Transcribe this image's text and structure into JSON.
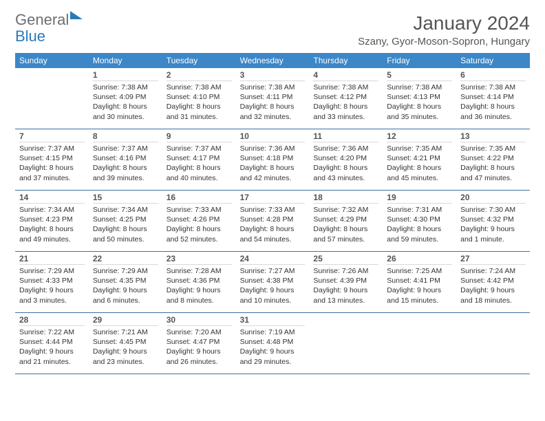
{
  "brand": {
    "line1": "General",
    "line2": "Blue"
  },
  "title": "January 2024",
  "location": "Szany, Gyor-Moson-Sopron, Hungary",
  "styling": {
    "header_bg": "#3b87c8",
    "header_text": "#ffffff",
    "accent_border": "#3b6fa0",
    "daynum_color": "#555555",
    "body_text": "#333333",
    "logo_gray": "#6d6e71",
    "logo_blue": "#2a7ab9",
    "page_bg": "#ffffff",
    "font_family": "Arial",
    "title_fontsize": 28,
    "location_fontsize": 15,
    "weekday_fontsize": 12,
    "daynum_fontsize": 12,
    "dayinfo_fontsize": 10.5,
    "columns": 7
  },
  "weekdays": [
    "Sunday",
    "Monday",
    "Tuesday",
    "Wednesday",
    "Thursday",
    "Friday",
    "Saturday"
  ],
  "weeks": [
    [
      null,
      {
        "n": "1",
        "sr": "Sunrise: 7:38 AM",
        "ss": "Sunset: 4:09 PM",
        "dl": "Daylight: 8 hours and 30 minutes."
      },
      {
        "n": "2",
        "sr": "Sunrise: 7:38 AM",
        "ss": "Sunset: 4:10 PM",
        "dl": "Daylight: 8 hours and 31 minutes."
      },
      {
        "n": "3",
        "sr": "Sunrise: 7:38 AM",
        "ss": "Sunset: 4:11 PM",
        "dl": "Daylight: 8 hours and 32 minutes."
      },
      {
        "n": "4",
        "sr": "Sunrise: 7:38 AM",
        "ss": "Sunset: 4:12 PM",
        "dl": "Daylight: 8 hours and 33 minutes."
      },
      {
        "n": "5",
        "sr": "Sunrise: 7:38 AM",
        "ss": "Sunset: 4:13 PM",
        "dl": "Daylight: 8 hours and 35 minutes."
      },
      {
        "n": "6",
        "sr": "Sunrise: 7:38 AM",
        "ss": "Sunset: 4:14 PM",
        "dl": "Daylight: 8 hours and 36 minutes."
      }
    ],
    [
      {
        "n": "7",
        "sr": "Sunrise: 7:37 AM",
        "ss": "Sunset: 4:15 PM",
        "dl": "Daylight: 8 hours and 37 minutes."
      },
      {
        "n": "8",
        "sr": "Sunrise: 7:37 AM",
        "ss": "Sunset: 4:16 PM",
        "dl": "Daylight: 8 hours and 39 minutes."
      },
      {
        "n": "9",
        "sr": "Sunrise: 7:37 AM",
        "ss": "Sunset: 4:17 PM",
        "dl": "Daylight: 8 hours and 40 minutes."
      },
      {
        "n": "10",
        "sr": "Sunrise: 7:36 AM",
        "ss": "Sunset: 4:18 PM",
        "dl": "Daylight: 8 hours and 42 minutes."
      },
      {
        "n": "11",
        "sr": "Sunrise: 7:36 AM",
        "ss": "Sunset: 4:20 PM",
        "dl": "Daylight: 8 hours and 43 minutes."
      },
      {
        "n": "12",
        "sr": "Sunrise: 7:35 AM",
        "ss": "Sunset: 4:21 PM",
        "dl": "Daylight: 8 hours and 45 minutes."
      },
      {
        "n": "13",
        "sr": "Sunrise: 7:35 AM",
        "ss": "Sunset: 4:22 PM",
        "dl": "Daylight: 8 hours and 47 minutes."
      }
    ],
    [
      {
        "n": "14",
        "sr": "Sunrise: 7:34 AM",
        "ss": "Sunset: 4:23 PM",
        "dl": "Daylight: 8 hours and 49 minutes."
      },
      {
        "n": "15",
        "sr": "Sunrise: 7:34 AM",
        "ss": "Sunset: 4:25 PM",
        "dl": "Daylight: 8 hours and 50 minutes."
      },
      {
        "n": "16",
        "sr": "Sunrise: 7:33 AM",
        "ss": "Sunset: 4:26 PM",
        "dl": "Daylight: 8 hours and 52 minutes."
      },
      {
        "n": "17",
        "sr": "Sunrise: 7:33 AM",
        "ss": "Sunset: 4:28 PM",
        "dl": "Daylight: 8 hours and 54 minutes."
      },
      {
        "n": "18",
        "sr": "Sunrise: 7:32 AM",
        "ss": "Sunset: 4:29 PM",
        "dl": "Daylight: 8 hours and 57 minutes."
      },
      {
        "n": "19",
        "sr": "Sunrise: 7:31 AM",
        "ss": "Sunset: 4:30 PM",
        "dl": "Daylight: 8 hours and 59 minutes."
      },
      {
        "n": "20",
        "sr": "Sunrise: 7:30 AM",
        "ss": "Sunset: 4:32 PM",
        "dl": "Daylight: 9 hours and 1 minute."
      }
    ],
    [
      {
        "n": "21",
        "sr": "Sunrise: 7:29 AM",
        "ss": "Sunset: 4:33 PM",
        "dl": "Daylight: 9 hours and 3 minutes."
      },
      {
        "n": "22",
        "sr": "Sunrise: 7:29 AM",
        "ss": "Sunset: 4:35 PM",
        "dl": "Daylight: 9 hours and 6 minutes."
      },
      {
        "n": "23",
        "sr": "Sunrise: 7:28 AM",
        "ss": "Sunset: 4:36 PM",
        "dl": "Daylight: 9 hours and 8 minutes."
      },
      {
        "n": "24",
        "sr": "Sunrise: 7:27 AM",
        "ss": "Sunset: 4:38 PM",
        "dl": "Daylight: 9 hours and 10 minutes."
      },
      {
        "n": "25",
        "sr": "Sunrise: 7:26 AM",
        "ss": "Sunset: 4:39 PM",
        "dl": "Daylight: 9 hours and 13 minutes."
      },
      {
        "n": "26",
        "sr": "Sunrise: 7:25 AM",
        "ss": "Sunset: 4:41 PM",
        "dl": "Daylight: 9 hours and 15 minutes."
      },
      {
        "n": "27",
        "sr": "Sunrise: 7:24 AM",
        "ss": "Sunset: 4:42 PM",
        "dl": "Daylight: 9 hours and 18 minutes."
      }
    ],
    [
      {
        "n": "28",
        "sr": "Sunrise: 7:22 AM",
        "ss": "Sunset: 4:44 PM",
        "dl": "Daylight: 9 hours and 21 minutes."
      },
      {
        "n": "29",
        "sr": "Sunrise: 7:21 AM",
        "ss": "Sunset: 4:45 PM",
        "dl": "Daylight: 9 hours and 23 minutes."
      },
      {
        "n": "30",
        "sr": "Sunrise: 7:20 AM",
        "ss": "Sunset: 4:47 PM",
        "dl": "Daylight: 9 hours and 26 minutes."
      },
      {
        "n": "31",
        "sr": "Sunrise: 7:19 AM",
        "ss": "Sunset: 4:48 PM",
        "dl": "Daylight: 9 hours and 29 minutes."
      },
      null,
      null,
      null
    ]
  ]
}
